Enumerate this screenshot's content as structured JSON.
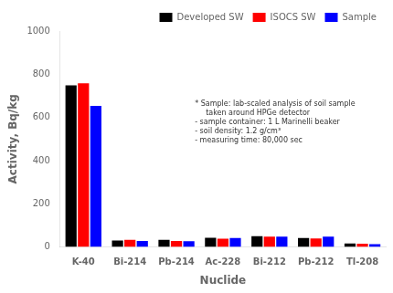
{
  "chart_data": {
    "type": "bar",
    "categories": [
      "K-40",
      "Bi-214",
      "Pb-214",
      "Ac-228",
      "Bi-212",
      "Pb-212",
      "Tl-208"
    ],
    "series": [
      {
        "name": "Developed SW",
        "color": "#000000",
        "values": [
          748,
          30,
          33,
          43,
          50,
          42,
          16
        ]
      },
      {
        "name": "ISOCS SW",
        "color": "#ff0000",
        "values": [
          758,
          33,
          28,
          38,
          48,
          40,
          15
        ]
      },
      {
        "name": "Sample",
        "color": "#0000ff",
        "values": [
          653,
          28,
          27,
          42,
          48,
          48,
          13
        ]
      }
    ],
    "xlabel": "Nuclide",
    "ylabel": "Activity, Bq/kg",
    "ylim": [
      0,
      1000
    ],
    "yticks": [
      0,
      200,
      400,
      600,
      800,
      1000
    ],
    "grid": false,
    "legend": "upper right",
    "annotations": [
      "* Sample: lab-scaled analysis of soil sample",
      "taken around HPGe detector",
      "- sample container: 1 L Marinelli beaker",
      "- soil density: 1.2 g/cm³",
      "- measuring time: 80,000 sec"
    ]
  }
}
